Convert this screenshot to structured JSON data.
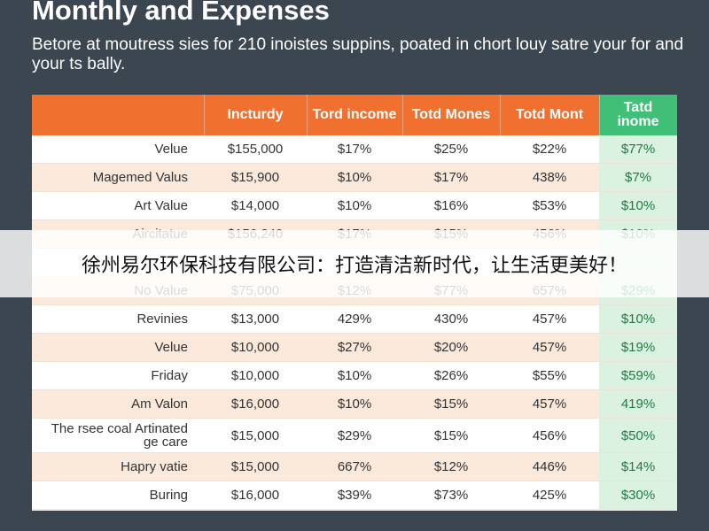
{
  "title": "Monthly and Expenses",
  "subtitle": "Betore at moutress sies for 210 inoistes suppins, poated in chort louy satre your for and your ts bally.",
  "table": {
    "headers": [
      "",
      "Incturdy",
      "Tord income",
      "Totd Mones",
      "Totd Mont",
      "Tatd inome"
    ],
    "rows": [
      [
        "Velue",
        "$155,000",
        "$17%",
        "$25%",
        "$22%",
        "$77%"
      ],
      [
        "Magemed Valus",
        "$15,900",
        "$10%",
        "$17%",
        "438%",
        "$7%"
      ],
      [
        "Art Value",
        "$14,000",
        "$10%",
        "$16%",
        "$53%",
        "$10%"
      ],
      [
        "Aircitatue",
        "$156,240",
        "$17%",
        "$15%",
        "456%",
        "$10%"
      ],
      [
        "",
        "",
        "",
        "",
        "",
        ""
      ],
      [
        "No Value",
        "$75,000",
        "$12%",
        "$77%",
        "657%",
        "$29%"
      ],
      [
        "Revinies",
        "$13,000",
        "429%",
        "430%",
        "457%",
        "$10%"
      ],
      [
        "Velue",
        "$10,000",
        "$27%",
        "$20%",
        "457%",
        "$19%"
      ],
      [
        "Friday",
        "$10,000",
        "$10%",
        "$26%",
        "$55%",
        "$59%"
      ],
      [
        "Am Valon",
        "$16,000",
        "$10%",
        "$15%",
        "457%",
        "419%"
      ],
      [
        "The rsee coal Artinated ge care",
        "$15,000",
        "$29%",
        "$15%",
        "456%",
        "$50%"
      ],
      [
        "Hapry vatie",
        "$15,000",
        "667%",
        "$12%",
        "446%",
        "$14%"
      ],
      [
        "Buring",
        "$16,000",
        "$39%",
        "$73%",
        "425%",
        "$30%"
      ]
    ]
  },
  "banner_text": "徐州易尔环保科技有限公司：打造清洁新时代，让生活更美好！",
  "colors": {
    "header": "#f07030",
    "highlight": "#3fbf78",
    "background": "#3b4650"
  }
}
